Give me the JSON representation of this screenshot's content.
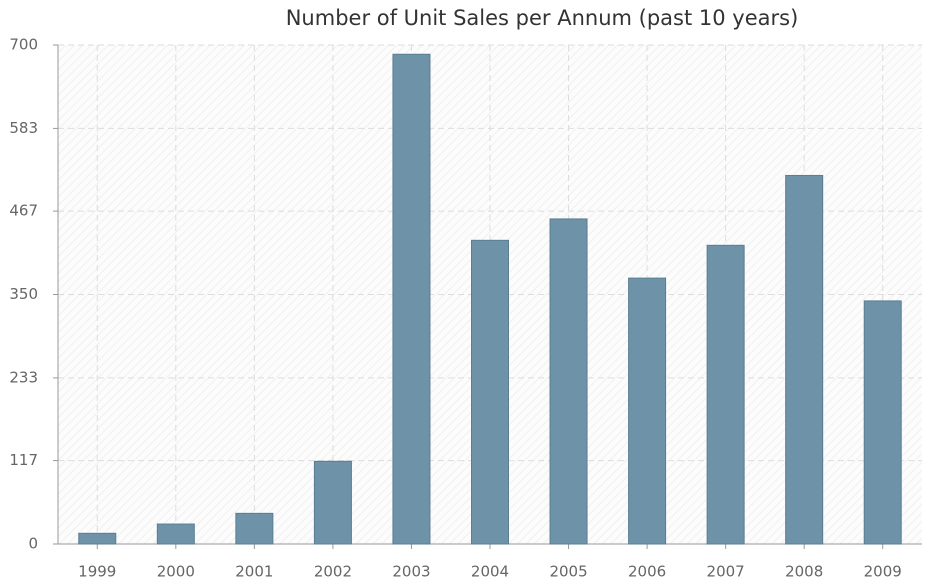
{
  "chart_data": {
    "type": "bar",
    "title": "Number of Unit Sales per Annum (past 10 years)",
    "categories": [
      "1999",
      "2000",
      "2001",
      "2002",
      "2003",
      "2004",
      "2005",
      "2006",
      "2007",
      "2008",
      "2009"
    ],
    "values": [
      15,
      28,
      43,
      116,
      687,
      426,
      456,
      373,
      419,
      517,
      341
    ],
    "color": "#6e93a8",
    "ylim": [
      0,
      700
    ],
    "yticks": [
      0,
      117,
      233,
      350,
      467,
      583,
      700
    ],
    "grid": true
  }
}
